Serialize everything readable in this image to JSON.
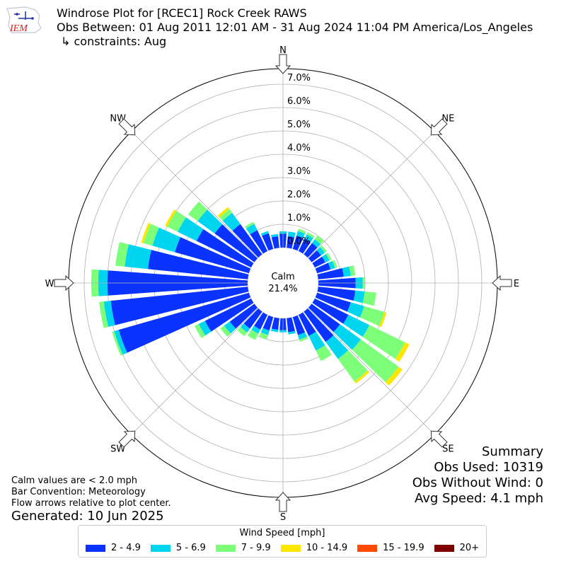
{
  "logo": {
    "text": "IEM"
  },
  "header": {
    "title": "Windrose Plot for [RCEC1] Rock Creek RAWS",
    "obs_between": "Obs Between: 01 Aug 2011 12:01 AM - 31 Aug 2024 11:04 PM America/Los_Angeles",
    "constraints": "↳ constraints: Aug"
  },
  "chart_data": {
    "type": "windrose",
    "calm_label": "Calm",
    "calm_pct": "21.4%",
    "radial_ticks": [
      "0.0%",
      "1.0%",
      "2.0%",
      "3.0%",
      "4.0%",
      "5.0%",
      "6.0%",
      "7.0%"
    ],
    "directions": [
      "N",
      "NE",
      "E",
      "SE",
      "S",
      "SW",
      "W",
      "NW"
    ],
    "bins": [
      "2 - 4.9",
      "5 - 6.9",
      "7 - 9.9",
      "10 - 14.9",
      "15 - 19.9",
      "20+"
    ],
    "colors": [
      "#0a33ff",
      "#00d5f0",
      "#7dff7a",
      "#ffe600",
      "#ff4a00",
      "#800000"
    ],
    "sectors": [
      {
        "dir": 0,
        "vals": [
          0.6,
          0.1,
          0.0,
          0.0,
          0,
          0
        ]
      },
      {
        "dir": 10,
        "vals": [
          0.5,
          0.2,
          0.0,
          0.0,
          0,
          0
        ]
      },
      {
        "dir": 20,
        "vals": [
          0.6,
          0.2,
          0.1,
          0.0,
          0,
          0
        ]
      },
      {
        "dir": 30,
        "vals": [
          0.6,
          0.2,
          0.1,
          0.0,
          0,
          0
        ]
      },
      {
        "dir": 40,
        "vals": [
          0.6,
          0.2,
          0.2,
          0.0,
          0,
          0
        ]
      },
      {
        "dir": 50,
        "vals": [
          0.5,
          0.2,
          0.1,
          0.0,
          0,
          0
        ]
      },
      {
        "dir": 60,
        "vals": [
          0.5,
          0.2,
          0.1,
          0.0,
          0,
          0
        ]
      },
      {
        "dir": 70,
        "vals": [
          0.6,
          0.2,
          0.1,
          0.0,
          0,
          0
        ]
      },
      {
        "dir": 80,
        "vals": [
          1.1,
          0.3,
          0.2,
          0.0,
          0,
          0
        ]
      },
      {
        "dir": 90,
        "vals": [
          1.6,
          0.3,
          0.1,
          0.0,
          0,
          0
        ]
      },
      {
        "dir": 100,
        "vals": [
          1.6,
          0.4,
          0.5,
          0.0,
          0,
          0
        ]
      },
      {
        "dir": 110,
        "vals": [
          1.5,
          0.6,
          0.9,
          0.1,
          0,
          0
        ]
      },
      {
        "dir": 120,
        "vals": [
          1.6,
          1.0,
          1.7,
          0.2,
          0,
          0
        ]
      },
      {
        "dir": 130,
        "vals": [
          1.5,
          1.1,
          2.0,
          0.2,
          0,
          0
        ]
      },
      {
        "dir": 140,
        "vals": [
          1.6,
          0.9,
          1.2,
          0.1,
          0,
          0
        ]
      },
      {
        "dir": 150,
        "vals": [
          1.0,
          0.7,
          0.5,
          0.0,
          0,
          0
        ]
      },
      {
        "dir": 160,
        "vals": [
          0.8,
          0.2,
          0.1,
          0.0,
          0,
          0
        ]
      },
      {
        "dir": 170,
        "vals": [
          0.6,
          0.1,
          0.0,
          0.0,
          0,
          0
        ]
      },
      {
        "dir": 180,
        "vals": [
          0.5,
          0.1,
          0.0,
          0.0,
          0,
          0
        ]
      },
      {
        "dir": 190,
        "vals": [
          0.5,
          0.1,
          0.0,
          0.0,
          0,
          0
        ]
      },
      {
        "dir": 200,
        "vals": [
          0.6,
          0.2,
          0.2,
          0.0,
          0,
          0
        ]
      },
      {
        "dir": 210,
        "vals": [
          0.7,
          0.2,
          0.3,
          0.0,
          0,
          0
        ]
      },
      {
        "dir": 220,
        "vals": [
          0.9,
          0.2,
          0.2,
          0.0,
          0,
          0
        ]
      },
      {
        "dir": 230,
        "vals": [
          1.3,
          0.3,
          0.2,
          0.0,
          0,
          0
        ]
      },
      {
        "dir": 240,
        "vals": [
          2.2,
          0.3,
          0.2,
          0.0,
          0,
          0
        ]
      },
      {
        "dir": 250,
        "vals": [
          5.8,
          0.2,
          0.1,
          0.0,
          0,
          0
        ]
      },
      {
        "dir": 260,
        "vals": [
          5.9,
          0.3,
          0.2,
          0.0,
          0,
          0
        ]
      },
      {
        "dir": 270,
        "vals": [
          6.0,
          0.4,
          0.3,
          0.0,
          0,
          0
        ]
      },
      {
        "dir": 280,
        "vals": [
          4.3,
          1.0,
          0.4,
          0.0,
          0,
          0
        ]
      },
      {
        "dir": 290,
        "vals": [
          3.3,
          1.0,
          0.4,
          0.1,
          0,
          0
        ]
      },
      {
        "dir": 300,
        "vals": [
          2.6,
          0.9,
          0.5,
          0.1,
          0,
          0
        ]
      },
      {
        "dir": 310,
        "vals": [
          2.1,
          0.9,
          0.5,
          0.0,
          0,
          0
        ]
      },
      {
        "dir": 320,
        "vals": [
          1.6,
          0.6,
          0.2,
          0.1,
          0,
          0
        ]
      },
      {
        "dir": 330,
        "vals": [
          1.0,
          0.3,
          0.1,
          0.0,
          0,
          0
        ]
      },
      {
        "dir": 340,
        "vals": [
          0.7,
          0.1,
          0.0,
          0.0,
          0,
          0
        ]
      },
      {
        "dir": 350,
        "vals": [
          0.5,
          0.1,
          0.0,
          0.0,
          0,
          0
        ]
      }
    ]
  },
  "notes": {
    "calm": "Calm values are < 2.0 mph",
    "bar": "Bar Convention: Meteorology",
    "flow": "Flow arrows relative to plot center.",
    "generated": "Generated: 10 Jun 2025"
  },
  "summary": {
    "heading": "Summary",
    "obs_used": "Obs Used: 10319",
    "obs_without_wind": "Obs Without Wind: 0",
    "avg_speed": "Avg Speed: 4.1 mph"
  },
  "legend": {
    "title": "Wind Speed [mph]",
    "items": [
      {
        "label": "2 - 4.9",
        "color": "#0a33ff"
      },
      {
        "label": "5 - 6.9",
        "color": "#00d5f0"
      },
      {
        "label": "7 - 9.9",
        "color": "#7dff7a"
      },
      {
        "label": "10 - 14.9",
        "color": "#ffe600"
      },
      {
        "label": "15 - 19.9",
        "color": "#ff4a00"
      },
      {
        "label": "20+",
        "color": "#800000"
      }
    ]
  }
}
